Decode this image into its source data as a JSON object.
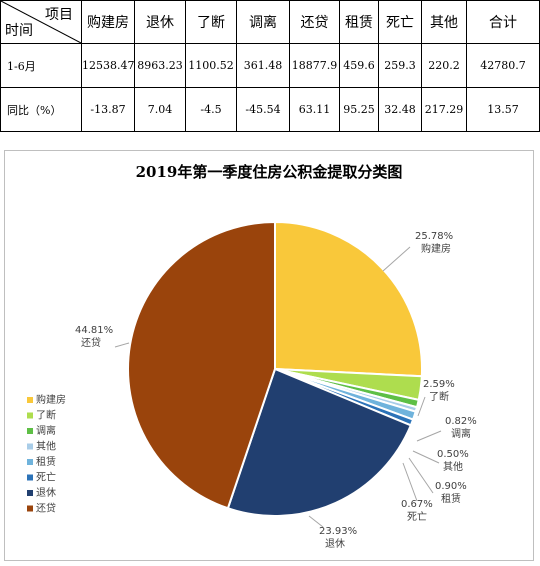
{
  "table": {
    "corner_top": "项目",
    "corner_bottom": "时间",
    "headers": [
      "购建房",
      "退休",
      "了断",
      "调离",
      "还贷",
      "租赁",
      "死亡",
      "其他",
      "合计"
    ],
    "rows": [
      {
        "label": "1-6月",
        "values": [
          "12538.47",
          "8963.23",
          "1100.52",
          "361.48",
          "18877.9",
          "459.6",
          "259.3",
          "220.2",
          "42780.7"
        ]
      },
      {
        "label": "同比（%）",
        "values": [
          "-13.87",
          "7.04",
          "-4.5",
          "-45.54",
          "63.11",
          "95.25",
          "32.48",
          "217.29",
          "13.57"
        ]
      }
    ]
  },
  "chart_data": {
    "type": "pie",
    "title": "2019年第一季度住房公积金提取分类图",
    "slices": [
      {
        "name": "购建房",
        "value": 25.78,
        "label": "25.78%",
        "color": "#F9C83A"
      },
      {
        "name": "了断",
        "value": 2.59,
        "label": "2.59%",
        "color": "#AEDD4E"
      },
      {
        "name": "调离",
        "value": 0.82,
        "label": "0.82%",
        "color": "#5EBF46"
      },
      {
        "name": "其他",
        "value": 0.5,
        "label": "0.50%",
        "color": "#A9CDE8"
      },
      {
        "name": "租赁",
        "value": 0.9,
        "label": "0.90%",
        "color": "#6FB3DC"
      },
      {
        "name": "死亡",
        "value": 0.67,
        "label": "0.67%",
        "color": "#2C73B8"
      },
      {
        "name": "退休",
        "value": 23.93,
        "label": "23.93%",
        "color": "#213F70"
      },
      {
        "name": "还贷",
        "value": 44.81,
        "label": "44.81%",
        "color": "#9A440C"
      }
    ],
    "legend": {
      "position": "left",
      "items": [
        {
          "name": "购建房",
          "color": "#F9C83A"
        },
        {
          "name": "了断",
          "color": "#AEDD4E"
        },
        {
          "name": "调离",
          "color": "#5EBF46"
        },
        {
          "name": "其他",
          "color": "#A9CDE8"
        },
        {
          "name": "租赁",
          "color": "#6FB3DC"
        },
        {
          "name": "死亡",
          "color": "#2C73B8"
        },
        {
          "name": "退休",
          "color": "#213F70"
        },
        {
          "name": "还贷",
          "color": "#9A440C"
        }
      ]
    }
  }
}
